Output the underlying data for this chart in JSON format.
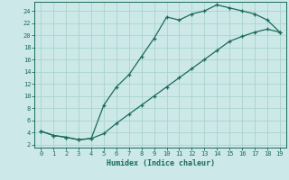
{
  "xlabel": "Humidex (Indice chaleur)",
  "bg_color": "#cce8e8",
  "grid_color": "#aad4cc",
  "line_color": "#1a6b5a",
  "xlim": [
    -0.5,
    19.5
  ],
  "ylim": [
    1.5,
    25.5
  ],
  "xticks": [
    0,
    1,
    2,
    3,
    4,
    5,
    6,
    7,
    8,
    9,
    10,
    11,
    12,
    13,
    14,
    15,
    16,
    17,
    18,
    19
  ],
  "yticks": [
    2,
    4,
    6,
    8,
    10,
    12,
    14,
    16,
    18,
    20,
    22,
    24
  ],
  "curve1_x": [
    0,
    1,
    2,
    3,
    4,
    5,
    6,
    7,
    8,
    9,
    10,
    11,
    12,
    13,
    14,
    15,
    16,
    17,
    18,
    19
  ],
  "curve1_y": [
    4.2,
    3.5,
    3.2,
    2.8,
    3.0,
    8.5,
    11.5,
    13.5,
    16.5,
    19.5,
    23.0,
    22.5,
    23.5,
    24.0,
    25.0,
    24.5,
    24.0,
    23.5,
    22.5,
    20.5
  ],
  "curve2_x": [
    0,
    1,
    2,
    3,
    4,
    5,
    6,
    7,
    8,
    9,
    10,
    11,
    12,
    13,
    14,
    15,
    16,
    17,
    18,
    19
  ],
  "curve2_y": [
    4.2,
    3.5,
    3.2,
    2.8,
    3.0,
    3.8,
    5.5,
    7.0,
    8.5,
    10.0,
    11.5,
    13.0,
    14.5,
    16.0,
    17.5,
    19.0,
    19.8,
    20.5,
    21.0,
    20.5
  ]
}
